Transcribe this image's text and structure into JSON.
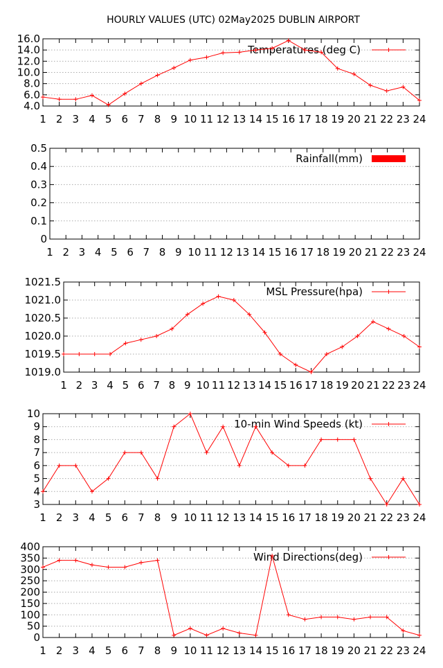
{
  "page_title": "HOURLY VALUES (UTC) 02May2025  DUBLIN AIRPORT",
  "colors": {
    "series": "#ff0000",
    "grid": "#aaaaaa",
    "axis": "#000000"
  },
  "chart_data": [
    {
      "id": "temperature",
      "type": "line",
      "legend": "Temperatures (deg C)",
      "x": [
        1,
        2,
        3,
        4,
        5,
        6,
        7,
        8,
        9,
        10,
        11,
        12,
        13,
        14,
        15,
        16,
        17,
        18,
        19,
        20,
        21,
        22,
        23,
        24
      ],
      "x_ticks": [
        "1",
        "2",
        "3",
        "4",
        "5",
        "6",
        "7",
        "8",
        "9",
        "10",
        "11",
        "12",
        "13",
        "14",
        "15",
        "16",
        "17",
        "18",
        "19",
        "20",
        "21",
        "22",
        "23",
        "24"
      ],
      "y_ticks": [
        "4.0",
        "6.0",
        "8.0",
        "10.0",
        "12.0",
        "14.0",
        "16.0"
      ],
      "y_tick_values": [
        4,
        6,
        8,
        10,
        12,
        14,
        16
      ],
      "ylim": [
        4,
        16
      ],
      "grid": true,
      "legend_position": "top-right",
      "values": [
        5.6,
        5.2,
        5.2,
        5.9,
        4.2,
        6.2,
        8.0,
        9.5,
        10.8,
        12.2,
        12.7,
        13.5,
        13.6,
        14.0,
        14.3,
        15.7,
        14.0,
        13.6,
        10.7,
        9.7,
        7.7,
        6.7,
        7.4,
        5.0
      ]
    },
    {
      "id": "rainfall",
      "type": "bar",
      "legend": "Rainfall(mm)",
      "x": [
        1,
        2,
        3,
        4,
        5,
        6,
        7,
        8,
        9,
        10,
        11,
        12,
        13,
        14,
        15,
        16,
        17,
        18,
        19,
        20,
        21,
        22,
        23,
        24
      ],
      "x_ticks": [
        "1",
        "2",
        "3",
        "4",
        "5",
        "6",
        "7",
        "8",
        "9",
        "10",
        "11",
        "12",
        "13",
        "14",
        "15",
        "16",
        "17",
        "18",
        "19",
        "20",
        "21",
        "22",
        "23",
        "24"
      ],
      "y_ticks": [
        "0",
        "0.1",
        "0.2",
        "0.3",
        "0.4",
        "0.5"
      ],
      "y_tick_values": [
        0,
        0.1,
        0.2,
        0.3,
        0.4,
        0.5
      ],
      "ylim": [
        0,
        0.5
      ],
      "grid": true,
      "legend_position": "top-right",
      "values": [
        0,
        0,
        0,
        0,
        0,
        0,
        0,
        0,
        0,
        0,
        0,
        0,
        0,
        0,
        0,
        0,
        0,
        0,
        0,
        0,
        0,
        0,
        0,
        0
      ]
    },
    {
      "id": "pressure",
      "type": "line",
      "legend": "MSL Pressure(hpa)",
      "x": [
        1,
        2,
        3,
        4,
        5,
        6,
        7,
        8,
        9,
        10,
        11,
        12,
        13,
        14,
        15,
        16,
        17,
        18,
        19,
        20,
        21,
        22,
        23,
        24
      ],
      "x_ticks": [
        "1",
        "2",
        "3",
        "4",
        "5",
        "6",
        "7",
        "8",
        "9",
        "10",
        "11",
        "12",
        "13",
        "14",
        "15",
        "16",
        "17",
        "18",
        "19",
        "20",
        "21",
        "22",
        "23",
        "24"
      ],
      "y_ticks": [
        "1019.0",
        "1019.5",
        "1020.0",
        "1020.5",
        "1021.0",
        "1021.5"
      ],
      "y_tick_values": [
        1019,
        1019.5,
        1020,
        1020.5,
        1021,
        1021.5
      ],
      "ylim": [
        1019,
        1021.5
      ],
      "grid": true,
      "legend_position": "top-right",
      "values": [
        1019.5,
        1019.5,
        1019.5,
        1019.5,
        1019.8,
        1019.9,
        1020.0,
        1020.2,
        1020.6,
        1020.9,
        1021.1,
        1021.0,
        1020.6,
        1020.1,
        1019.5,
        1019.2,
        1019.0,
        1019.5,
        1019.7,
        1020.0,
        1020.4,
        1020.2,
        1020.0,
        1019.7
      ]
    },
    {
      "id": "wind_speed",
      "type": "line",
      "legend": "10-min Wind Speeds (kt)",
      "x": [
        1,
        2,
        3,
        4,
        5,
        6,
        7,
        8,
        9,
        10,
        11,
        12,
        13,
        14,
        15,
        16,
        17,
        18,
        19,
        20,
        21,
        22,
        23,
        24
      ],
      "x_ticks": [
        "1",
        "2",
        "3",
        "4",
        "5",
        "6",
        "7",
        "8",
        "9",
        "10",
        "11",
        "12",
        "13",
        "14",
        "15",
        "16",
        "17",
        "18",
        "19",
        "20",
        "21",
        "22",
        "23",
        "24"
      ],
      "y_ticks": [
        "3",
        "4",
        "5",
        "6",
        "7",
        "8",
        "9",
        "10"
      ],
      "y_tick_values": [
        3,
        4,
        5,
        6,
        7,
        8,
        9,
        10
      ],
      "ylim": [
        3,
        10
      ],
      "grid": true,
      "legend_position": "top-right",
      "values": [
        4,
        6,
        6,
        4,
        5,
        7,
        7,
        5,
        9,
        10,
        7,
        9,
        6,
        9,
        7,
        6,
        6,
        8,
        8,
        8,
        5,
        3,
        5,
        3
      ]
    },
    {
      "id": "wind_direction",
      "type": "line",
      "legend": "Wind Directions(deg)",
      "x": [
        1,
        2,
        3,
        4,
        5,
        6,
        7,
        8,
        9,
        10,
        11,
        12,
        13,
        14,
        15,
        16,
        17,
        18,
        19,
        20,
        21,
        22,
        23,
        24
      ],
      "x_ticks": [
        "1",
        "2",
        "3",
        "4",
        "5",
        "6",
        "7",
        "8",
        "9",
        "10",
        "11",
        "12",
        "13",
        "14",
        "15",
        "16",
        "17",
        "18",
        "19",
        "20",
        "21",
        "22",
        "23",
        "24"
      ],
      "y_ticks": [
        "0",
        "50",
        "100",
        "150",
        "200",
        "250",
        "300",
        "350",
        "400"
      ],
      "y_tick_values": [
        0,
        50,
        100,
        150,
        200,
        250,
        300,
        350,
        400
      ],
      "ylim": [
        0,
        400
      ],
      "grid": true,
      "legend_position": "top-right",
      "values": [
        310,
        340,
        340,
        320,
        310,
        310,
        330,
        340,
        10,
        40,
        10,
        40,
        20,
        10,
        360,
        100,
        80,
        90,
        90,
        80,
        90,
        90,
        30,
        10
      ]
    }
  ]
}
